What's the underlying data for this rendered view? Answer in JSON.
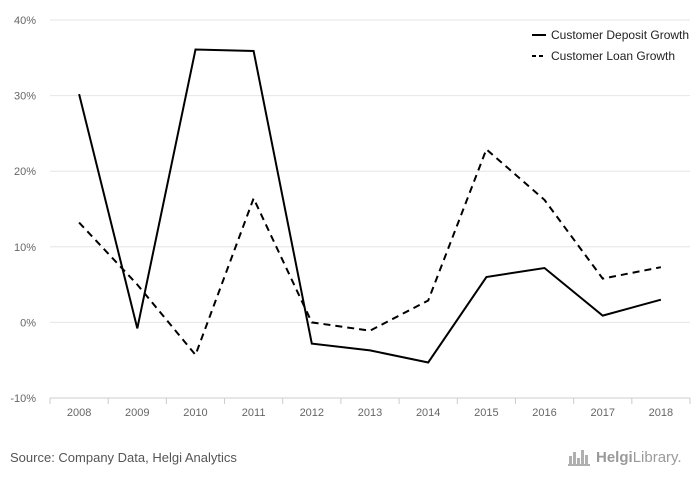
{
  "chart_data": {
    "type": "line",
    "categories": [
      "2008",
      "2009",
      "2010",
      "2011",
      "2012",
      "2013",
      "2014",
      "2015",
      "2016",
      "2017",
      "2018"
    ],
    "series": [
      {
        "name": "Customer Deposit Growth",
        "values": [
          30.2,
          -0.8,
          36.1,
          35.9,
          -2.8,
          -3.7,
          -5.3,
          6.0,
          7.2,
          0.9,
          3.0
        ],
        "color": "#000000",
        "dash": "solid"
      },
      {
        "name": "Customer Loan Growth",
        "values": [
          13.2,
          5.0,
          -4.3,
          16.4,
          0.0,
          -1.1,
          2.9,
          22.9,
          16.2,
          5.8,
          7.3
        ],
        "color": "#000000",
        "dash": "dashed"
      }
    ],
    "ylim": [
      -10,
      40
    ],
    "yticks": [
      -10,
      0,
      10,
      20,
      30,
      40
    ],
    "ytick_labels": [
      "-10%",
      "0%",
      "10%",
      "20%",
      "30%",
      "40%"
    ],
    "grid": true,
    "legend_position": "top-right",
    "title": "",
    "xlabel": "",
    "ylabel": ""
  },
  "footer": {
    "source": "Source: Company Data, Helgi Analytics",
    "brand_bold": "Helgi",
    "brand_light": "Library."
  }
}
